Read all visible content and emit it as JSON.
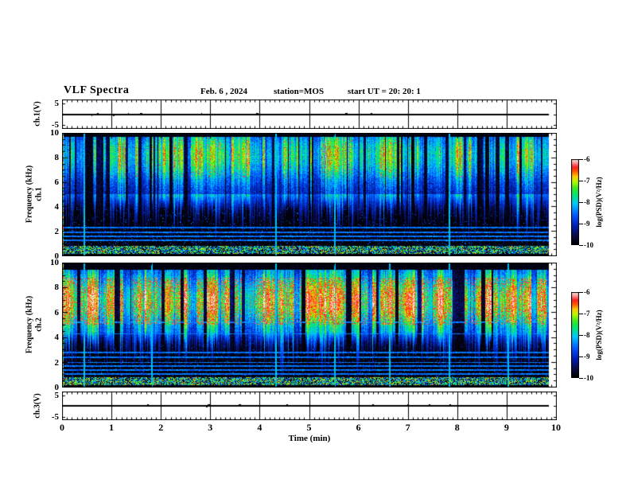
{
  "title": {
    "main": "VLF Spectra",
    "date": "Feb. 6  , 2024",
    "station": "station=MOS",
    "start_ut": "start UT  =   20: 20: 1"
  },
  "x_axis": {
    "label": "Time (min)",
    "ticks": [
      "0",
      "1",
      "2",
      "3",
      "4",
      "5",
      "6",
      "7",
      "8",
      "9",
      "10"
    ],
    "range_min": [
      0,
      10
    ]
  },
  "panels": {
    "ch1_voltage": {
      "ylabel": "ch.1(V)",
      "yticks": [
        "5",
        "-5"
      ],
      "range_v": [
        -5,
        5
      ]
    },
    "ch1_spectrogram": {
      "ylabel_channel": "ch.1",
      "ylabel_axis": "Frequency (kHz)",
      "yticks": [
        "10",
        "8",
        "6",
        "4",
        "2",
        "0"
      ],
      "range_khz": [
        0,
        10
      ]
    },
    "ch2_spectrogram": {
      "ylabel_channel": "ch.2",
      "ylabel_axis": "Frequency (kHz)",
      "yticks": [
        "10",
        "8",
        "6",
        "4",
        "2",
        "0"
      ],
      "range_khz": [
        0,
        10
      ]
    },
    "ch3_voltage": {
      "ylabel": "ch.3(V)",
      "yticks": [
        "5",
        "-5"
      ],
      "range_v": [
        -5,
        5
      ]
    }
  },
  "colorbar": {
    "label": "log(PSD)(V²/Hz)",
    "ticks": [
      "-6",
      "-7",
      "-8",
      "-9",
      "-10"
    ],
    "range": [
      -10,
      -6
    ]
  },
  "colors": {
    "frame": "#000000",
    "background": "#ffffff",
    "colormap_stops": [
      [
        0.0,
        "#000000"
      ],
      [
        0.1,
        "#0a0a40"
      ],
      [
        0.22,
        "#001eb4"
      ],
      [
        0.35,
        "#005aff"
      ],
      [
        0.48,
        "#00c8ff"
      ],
      [
        0.58,
        "#00e678"
      ],
      [
        0.66,
        "#3ce628"
      ],
      [
        0.74,
        "#b4fa00"
      ],
      [
        0.8,
        "#ffc800"
      ],
      [
        0.86,
        "#ff5a00"
      ],
      [
        0.91,
        "#ff1e1e"
      ],
      [
        0.96,
        "#ff9696"
      ],
      [
        1.0,
        "#ffe6e6"
      ]
    ]
  },
  "chart_data": [
    {
      "type": "line",
      "name": "ch.1 voltage waveform",
      "ylabel": "ch.1(V)",
      "ylim": [
        -5,
        5
      ],
      "xlabel": "Time (min)",
      "xlim": [
        0,
        10
      ],
      "data_end_min": 9.83,
      "grid": "vertical line at every minute, minor ticks every 0.1 min",
      "series": [
        {
          "name": "ch.1",
          "summary": "flat trace at ≈0 V for the whole record with rare tiny sub-volt blips",
          "approx_constant_v": 0
        }
      ]
    },
    {
      "type": "heatmap",
      "name": "ch.1 spectrogram",
      "ylabel": "Frequency (kHz)",
      "ylim": [
        0,
        10
      ],
      "xlabel": "Time (min)",
      "xlim": [
        0,
        10
      ],
      "data_end_min": 9.83,
      "z_label": "log(PSD)(V²/Hz)",
      "z_range": [
        -10,
        -6
      ],
      "features": {
        "texture": "dense vertical burst striations (sferic clusters) on a black background; blue/cyan tails extend toward low frequency",
        "main_band_khz": [
          5.0,
          9.7
        ],
        "band_center_khz": 8.2,
        "hot_spots": "red speckles (log PSD ≈ -6.5) between 7.6 and 9.4 kHz during strong bursts",
        "horizontal_lines_khz": [
          1.3,
          1.6,
          1.95,
          2.3
        ],
        "bright_bottom_band_khz": [
          0.18,
          0.85
        ],
        "bright_vertical_lines_min": [
          0.43,
          4.3,
          5.5,
          7.8
        ]
      }
    },
    {
      "type": "heatmap",
      "name": "ch.2 spectrogram",
      "ylabel": "Frequency (kHz)",
      "ylim": [
        0,
        10
      ],
      "xlabel": "Time (min)",
      "xlim": [
        0,
        10
      ],
      "data_end_min": 9.83,
      "z_label": "log(PSD)(V²/Hz)",
      "z_range": [
        -10,
        -6
      ],
      "features": {
        "texture": "nearly continuous strong emission band with vertical striations; cyan streaks reach the bottom of the panel",
        "main_band_khz": [
          4.6,
          9.4
        ],
        "band_center_khz": 6.9,
        "hot_spots": "large red/orange cores (log PSD ≈ -6.3) between 5.5 and 8.2 kHz for most of the record",
        "horizontal_lines_khz": [
          1.1,
          1.4,
          1.7,
          2.0,
          2.4,
          2.8,
          4.3,
          5.2
        ],
        "bright_bottom_band_khz": [
          0.18,
          0.85
        ],
        "bright_vertical_lines_min": [
          0.43,
          1.8,
          4.3,
          5.5,
          6.6,
          7.8,
          9.0
        ]
      }
    },
    {
      "type": "line",
      "name": "ch.3 voltage waveform",
      "ylabel": "ch.3(V)",
      "ylim": [
        -5,
        5
      ],
      "xlabel": "Time (min)",
      "xlim": [
        0,
        10
      ],
      "data_end_min": 9.83,
      "grid": "vertical line at every minute, minor ticks every 0.1 min",
      "series": [
        {
          "name": "ch.3",
          "summary": "flat trace at ≈0 V for the whole record with rare tiny sub-volt blips",
          "approx_constant_v": 0
        }
      ]
    }
  ]
}
